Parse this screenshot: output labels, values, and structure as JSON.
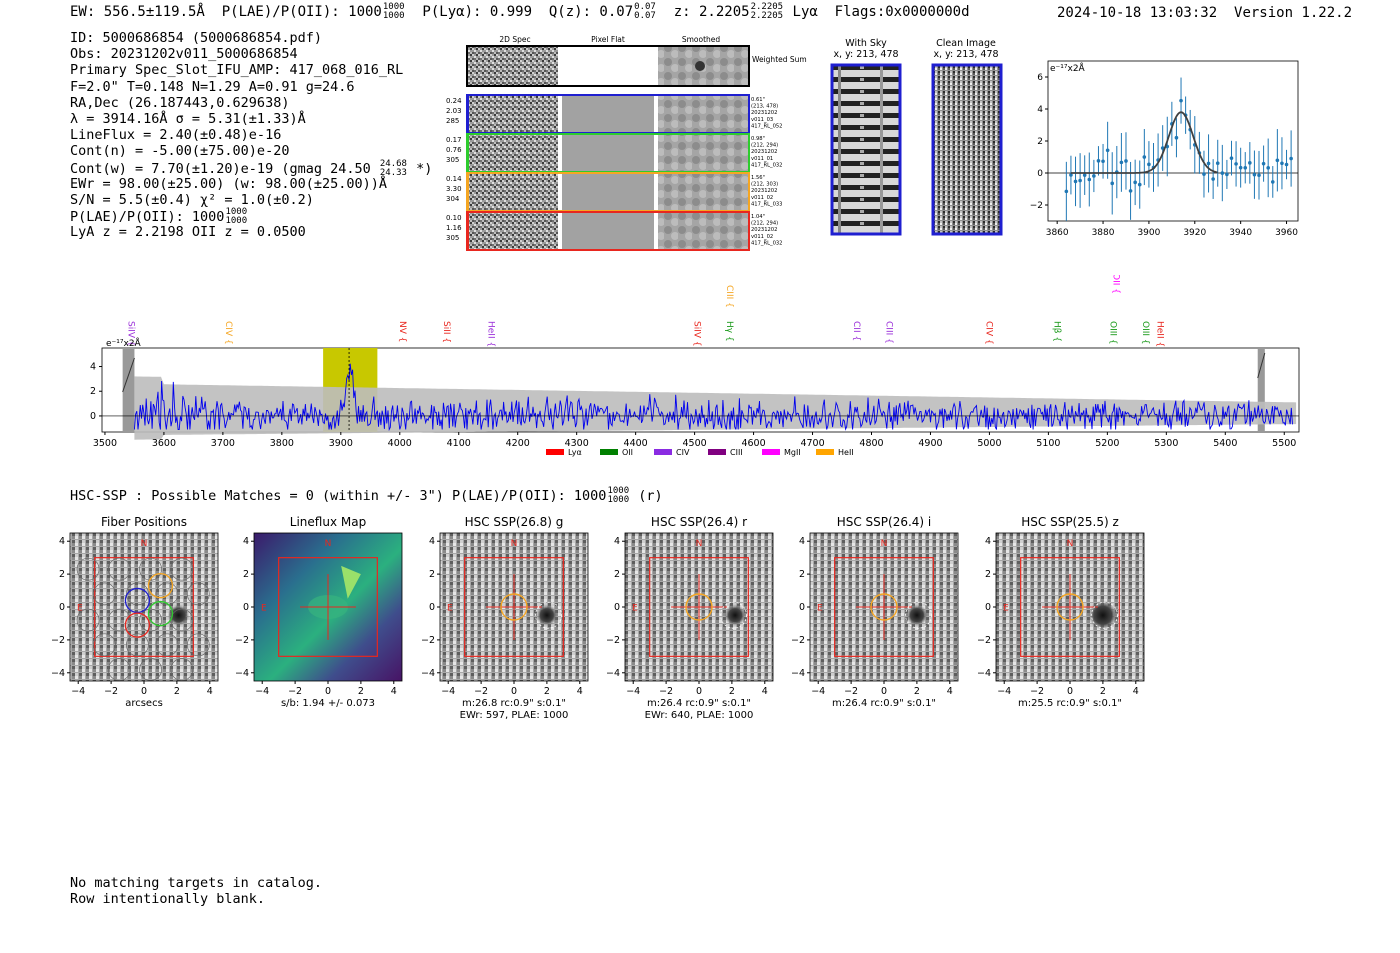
{
  "header": {
    "ew": "EW: 556.5±119.5Å",
    "plae_label": "P(LAE)/P(OII): 1000",
    "plae_up": "1000",
    "plae_dn": "1000",
    "plya": "P(Lyα): 0.999",
    "qz_label": "Q(z): 0.07",
    "qz_up": "0.07",
    "qz_dn": "0.07",
    "z_label": "z: 2.2205",
    "z_up": "2.2205",
    "z_dn": "2.2205",
    "z_line": "Lyα",
    "flags": "Flags:0x0000000d",
    "datetime": "2024-10-18 13:03:32",
    "version": "Version 1.22.2"
  },
  "info": {
    "id": "ID: 5000686854 (5000686854.pdf)",
    "obs": "Obs: 20231202v011_5000686854",
    "primary": "Primary Spec_Slot_IFU_AMP: 417_068_016_RL",
    "params": "F=2.0\"  T=0.148  N=1.29  A=0.91  g=24.6",
    "radec": "RA,Dec (26.187443,0.629638)",
    "lambda": "λ = 3914.16Å   σ = 5.31(±1.33)Å",
    "lineflux": "LineFlux = 2.40(±0.48)e-16",
    "contn": "Cont(n) = -5.00(±75.00)e-20",
    "contw_pre": "Cont(w) = 7.70(±1.20)e-19 (gmag 24.50",
    "contw_up": "24.68",
    "contw_dn": "24.33",
    "contw_post": "*)",
    "ewr": "EWr = 98.00(±25.00) (w: 98.00(±25.00))Å",
    "sn": "S/N = 5.5(±0.4)  χ² = 1.0(±0.2)",
    "plae_label": "P(LAE)/P(OII): 1000",
    "plae_up": "1000",
    "plae_dn": "1000",
    "lyaz": "LyA z = 2.2198   OII z = 0.0500"
  },
  "cutouts": {
    "col_headers": [
      "2D Spec",
      "Pixel Flat",
      "Smoothed"
    ],
    "weighted_label": "Weighted Sum",
    "rows": [
      {
        "color": "#1f1fd0",
        "left": [
          "0.24",
          "2.03",
          "285"
        ],
        "right": [
          "0.61\"",
          "(213, 478)",
          "20231202",
          "v011_03",
          "417_RL_052"
        ]
      },
      {
        "color": "#2ecc2e",
        "left": [
          "0.17",
          "0.76",
          "305"
        ],
        "right": [
          "0.98\"",
          "(212, 294)",
          "20231202",
          "v011_01",
          "417_RL_032"
        ]
      },
      {
        "color": "#f5a623",
        "left": [
          "0.14",
          "3.30",
          "304"
        ],
        "right": [
          "1.56\"",
          "(212, 303)",
          "20231202",
          "v011_02",
          "417_RL_033"
        ]
      },
      {
        "color": "#e8271f",
        "left": [
          "0.10",
          "1.16",
          "305"
        ],
        "right": [
          "1.04\"",
          "(212, 294)",
          "20231202",
          "v011_02",
          "417_RL_032"
        ]
      }
    ],
    "with_sky_title": "With Sky",
    "with_sky_xy": "x, y: 213, 478",
    "clean_title": "Clean Image",
    "clean_xy": "x, y: 213, 478"
  },
  "fit_plot": {
    "unit": "e⁻¹⁷x2Å",
    "xticks": [
      "3860",
      "3880",
      "3900",
      "3920",
      "3940",
      "3960"
    ],
    "yticks": [
      "−2",
      "0",
      "2",
      "4",
      "6"
    ],
    "xrange": [
      3856,
      3965
    ],
    "yrange": [
      -3,
      7
    ],
    "fit_center": 3914,
    "fit_sigma": 5.3,
    "fit_amp": 3.8
  },
  "spectrum": {
    "unit": "e⁻¹⁷x2Å",
    "xticks": [
      "3500",
      "3600",
      "3700",
      "3800",
      "3900",
      "4000",
      "4100",
      "4200",
      "4300",
      "4400",
      "4500",
      "4600",
      "4700",
      "4800",
      "4900",
      "5000",
      "5100",
      "5200",
      "5300",
      "5400",
      "5500"
    ],
    "yticks": [
      "0",
      "2",
      "4"
    ],
    "xrange": [
      3495,
      5525
    ],
    "yrange": [
      -1.3,
      5.5
    ],
    "highlight": [
      3870,
      3962
    ],
    "line_labels": [
      {
        "name": "SiIV",
        "wl": 3535,
        "color": "#9b30d9"
      },
      {
        "name": "CIV",
        "wl": 3700,
        "color": "#f5a623"
      },
      {
        "name": "NV",
        "wl": 3995,
        "color": "#e8271f"
      },
      {
        "name": "SiII",
        "wl": 4070,
        "color": "#e8271f"
      },
      {
        "name": "HeII",
        "wl": 4145,
        "color": "#9b30d9"
      },
      {
        "name": "SiIV",
        "wl": 4495,
        "color": "#e8271f"
      },
      {
        "name": "CIII",
        "wl": 4550,
        "color": "#f5a623"
      },
      {
        "name": "Hγ",
        "wl": 4550,
        "color": "#1a9a1a"
      },
      {
        "name": "CII",
        "wl": 4765,
        "color": "#9b30d9"
      },
      {
        "name": "CIII",
        "wl": 4820,
        "color": "#9b30d9"
      },
      {
        "name": "CIV",
        "wl": 4990,
        "color": "#e8271f"
      },
      {
        "name": "Hβ",
        "wl": 5105,
        "color": "#1a9a1a"
      },
      {
        "name": "OII",
        "wl": 5205,
        "color": "#ff00ff"
      },
      {
        "name": "OIII",
        "wl": 5200,
        "color": "#1a9a1a"
      },
      {
        "name": "OIII",
        "wl": 5255,
        "color": "#1a9a1a"
      },
      {
        "name": "HeII",
        "wl": 5280,
        "color": "#e8271f"
      }
    ],
    "legend": [
      {
        "name": "Lyα",
        "color": "#ff0000"
      },
      {
        "name": "OII",
        "color": "#008000"
      },
      {
        "name": "CIV",
        "color": "#8a2be2"
      },
      {
        "name": "CIII",
        "color": "#800080"
      },
      {
        "name": "MgII",
        "color": "#ff00ff"
      },
      {
        "name": "HeII",
        "color": "#ffa500"
      }
    ]
  },
  "hsc_line": {
    "pre": "HSC-SSP : Possible Matches = 0 (within +/- 3\")  P(LAE)/P(OII): 1000",
    "up": "1000",
    "dn": "1000",
    "post": "(r)"
  },
  "stamps": [
    {
      "title": "Fiber Positions",
      "cap1": "arcsecs",
      "cap2": ""
    },
    {
      "title": "Lineflux Map",
      "cap1": "s/b: 1.94 +/- 0.073",
      "cap2": ""
    },
    {
      "title": "HSC SSP(26.8) g",
      "cap1": "m:26.8 rc:0.9\"  s:0.1\"",
      "cap2": "EWr: 597, PLAE: 1000"
    },
    {
      "title": "HSC SSP(26.4) r",
      "cap1": "m:26.4 rc:0.9\"  s:0.1\"",
      "cap2": "EWr: 640, PLAE: 1000"
    },
    {
      "title": "HSC SSP(26.4) i",
      "cap1": "m:26.4 rc:0.9\"  s:0.1\"",
      "cap2": ""
    },
    {
      "title": "HSC SSP(25.5) z",
      "cap1": "m:25.5 rc:0.9\"  s:0.1\"",
      "cap2": ""
    }
  ],
  "stamp_ticks": [
    "−4",
    "−2",
    "0",
    "2",
    "4"
  ],
  "stamp_n": "N",
  "stamp_e": "E",
  "footer": {
    "line1": "No matching targets in catalog.",
    "line2": "Row intentionally blank."
  }
}
